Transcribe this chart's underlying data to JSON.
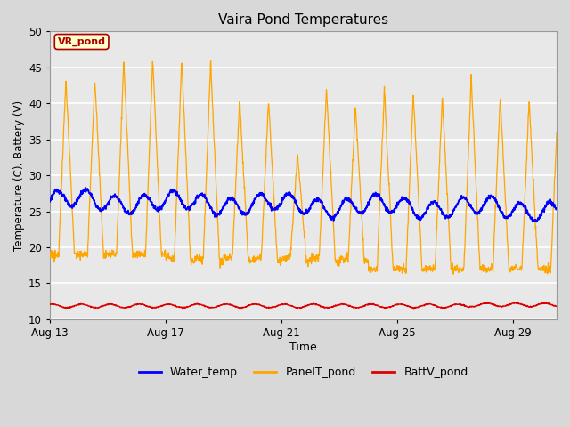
{
  "title": "Vaira Pond Temperatures",
  "xlabel": "Time",
  "ylabel": "Temperature (C), Battery (V)",
  "ylim": [
    10,
    50
  ],
  "yticks": [
    10,
    15,
    20,
    25,
    30,
    35,
    40,
    45,
    50
  ],
  "fig_bg_color": "#d8d8d8",
  "plot_bg_color": "#e8e8e8",
  "water_color": "#0000ff",
  "panel_color": "#ffa500",
  "batt_color": "#dd0000",
  "annotation_text": "VR_pond",
  "annotation_bg": "#ffffcc",
  "annotation_border": "#aa0000",
  "legend_labels": [
    "Water_temp",
    "PanelT_pond",
    "BattV_pond"
  ],
  "x_tick_labels": [
    "Aug 13",
    "Aug 17",
    "Aug 21",
    "Aug 25",
    "Aug 29"
  ],
  "x_tick_positions": [
    0,
    4,
    8,
    12,
    16
  ],
  "xlim": [
    0,
    17.5
  ],
  "n_days": 17.5,
  "pts_per_day": 96
}
